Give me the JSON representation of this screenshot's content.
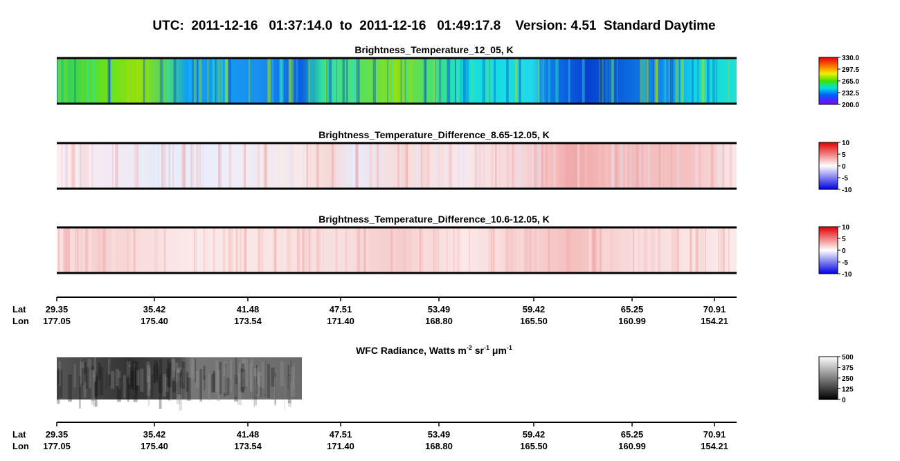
{
  "title": "UTC:  2011-12-16   01:37:14.0  to  2011-12-16   01:49:17.8    Version: 4.51  Standard Daytime",
  "panels": [
    {
      "title": "Brightness_Temperature_12_05, K",
      "colorbar": [
        "330.0",
        "297.5",
        "265.0",
        "232.5",
        "200.0"
      ]
    },
    {
      "title": "Brightness_Temperature_Difference_8.65-12.05, K",
      "colorbar": [
        "10",
        "5",
        "0",
        "-5",
        "-10"
      ]
    },
    {
      "title": "Brightness_Temperature_Difference_10.6-12.05, K",
      "colorbar": [
        "10",
        "5",
        "0",
        "-5",
        "-10"
      ]
    }
  ],
  "axis": {
    "lat_label": "Lat",
    "lon_label": "Lon",
    "lat": [
      "29.35",
      "35.42",
      "41.48",
      "47.51",
      "53.49",
      "59.42",
      "65.25",
      "70.91"
    ],
    "lon": [
      "177.05",
      "175.40",
      "173.54",
      "171.40",
      "168.80",
      "165.50",
      "160.99",
      "154.21"
    ]
  },
  "wfc": {
    "title": [
      "WFC Radiance, Watts m",
      "-2",
      " sr",
      "-1",
      " μm",
      "-1"
    ],
    "colorbar": [
      "500",
      "375",
      "250",
      "125",
      "0"
    ]
  },
  "axis2": {
    "lat_label": "Lat",
    "lon_label": "Lon",
    "lat": [
      "29.35",
      "35.42",
      "41.48",
      "47.51",
      "53.49",
      "59.42",
      "65.25",
      "70.91"
    ],
    "lon": [
      "177.05",
      "175.40",
      "173.54",
      "171.40",
      "168.80",
      "165.50",
      "160.99",
      "154.21"
    ]
  }
}
